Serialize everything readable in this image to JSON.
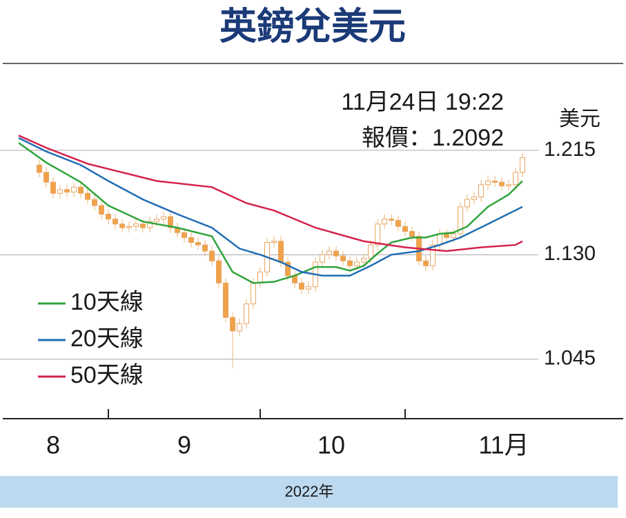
{
  "chart_data": {
    "type": "candlestick",
    "title": "英鎊兌美元",
    "annotations": [
      "11月24日 19:22",
      "報價：1.2092"
    ],
    "y_label": "美元",
    "x_label": "2022年",
    "month_labels": [
      "8",
      "9",
      "10",
      "11月"
    ],
    "open": [
      1.203,
      1.197,
      1.189,
      1.18,
      1.183,
      1.181,
      1.185,
      1.18,
      1.175,
      1.17,
      1.163,
      1.159,
      1.155,
      1.152,
      1.153,
      1.155,
      1.152,
      1.157,
      1.159,
      1.161,
      1.152,
      1.148,
      1.144,
      1.14,
      1.138,
      1.133,
      1.125,
      1.107,
      1.079,
      1.068,
      1.074,
      1.09,
      1.107,
      1.116,
      1.14,
      1.141,
      1.124,
      1.113,
      1.107,
      1.102,
      1.104,
      1.124,
      1.13,
      1.133,
      1.129,
      1.125,
      1.121,
      1.124,
      1.127,
      1.138,
      1.155,
      1.159,
      1.158,
      1.153,
      1.149,
      1.145,
      1.125,
      1.121,
      1.138,
      1.147,
      1.144,
      1.147,
      1.169,
      1.175,
      1.177,
      1.187,
      1.19,
      1.189,
      1.186,
      1.187,
      1.197
    ],
    "high": [
      1.207,
      1.201,
      1.193,
      1.187,
      1.187,
      1.189,
      1.189,
      1.184,
      1.179,
      1.174,
      1.167,
      1.163,
      1.159,
      1.157,
      1.159,
      1.159,
      1.161,
      1.163,
      1.165,
      1.165,
      1.156,
      1.152,
      1.148,
      1.144,
      1.142,
      1.137,
      1.129,
      1.111,
      1.083,
      1.078,
      1.094,
      1.111,
      1.12,
      1.144,
      1.145,
      1.145,
      1.128,
      1.117,
      1.111,
      1.108,
      1.128,
      1.134,
      1.137,
      1.137,
      1.133,
      1.129,
      1.128,
      1.131,
      1.142,
      1.159,
      1.163,
      1.163,
      1.162,
      1.157,
      1.153,
      1.149,
      1.129,
      1.142,
      1.151,
      1.151,
      1.151,
      1.173,
      1.179,
      1.181,
      1.191,
      1.194,
      1.194,
      1.193,
      1.191,
      1.201,
      1.213
    ],
    "low": [
      1.193,
      1.185,
      1.176,
      1.176,
      1.177,
      1.177,
      1.176,
      1.171,
      1.166,
      1.159,
      1.155,
      1.151,
      1.148,
      1.148,
      1.149,
      1.148,
      1.148,
      1.153,
      1.155,
      1.148,
      1.144,
      1.14,
      1.136,
      1.134,
      1.129,
      1.121,
      1.103,
      1.075,
      1.038,
      1.064,
      1.07,
      1.086,
      1.103,
      1.112,
      1.136,
      1.12,
      1.109,
      1.103,
      1.098,
      1.098,
      1.1,
      1.12,
      1.126,
      1.125,
      1.121,
      1.117,
      1.117,
      1.12,
      1.123,
      1.134,
      1.151,
      1.154,
      1.149,
      1.145,
      1.141,
      1.121,
      1.117,
      1.117,
      1.134,
      1.14,
      1.14,
      1.143,
      1.165,
      1.171,
      1.173,
      1.183,
      1.185,
      1.182,
      1.182,
      1.183,
      1.193
    ],
    "close": [
      1.197,
      1.189,
      1.18,
      1.183,
      1.181,
      1.185,
      1.18,
      1.175,
      1.17,
      1.163,
      1.159,
      1.155,
      1.152,
      1.153,
      1.155,
      1.152,
      1.157,
      1.159,
      1.161,
      1.152,
      1.148,
      1.144,
      1.14,
      1.138,
      1.133,
      1.125,
      1.107,
      1.079,
      1.068,
      1.074,
      1.09,
      1.107,
      1.116,
      1.14,
      1.141,
      1.124,
      1.113,
      1.107,
      1.102,
      1.104,
      1.124,
      1.13,
      1.133,
      1.129,
      1.125,
      1.121,
      1.124,
      1.127,
      1.138,
      1.155,
      1.159,
      1.158,
      1.153,
      1.149,
      1.145,
      1.125,
      1.121,
      1.138,
      1.147,
      1.144,
      1.147,
      1.169,
      1.175,
      1.177,
      1.187,
      1.19,
      1.189,
      1.186,
      1.187,
      1.197,
      1.209
    ],
    "up_color": "#ffffff",
    "down_color": "#f0a24a",
    "series": [
      {
        "name": "10天線",
        "color": "#2ea33a",
        "x": [
          -3,
          1,
          6,
          10,
          15,
          20,
          25,
          28,
          31,
          34,
          37,
          40,
          43,
          45,
          47,
          49,
          51,
          54,
          56,
          58,
          60,
          62,
          65,
          68,
          70
        ],
        "values": [
          1.221,
          1.205,
          1.189,
          1.17,
          1.157,
          1.152,
          1.145,
          1.116,
          1.107,
          1.108,
          1.113,
          1.12,
          1.12,
          1.117,
          1.121,
          1.131,
          1.14,
          1.144,
          1.144,
          1.147,
          1.148,
          1.153,
          1.169,
          1.179,
          1.19
        ]
      },
      {
        "name": "20天線",
        "color": "#1f6cb5",
        "x": [
          -3,
          1,
          6,
          10,
          15,
          20,
          25,
          29,
          32,
          35,
          38,
          41,
          45,
          48,
          51,
          55,
          58,
          61,
          65,
          70
        ],
        "values": [
          1.225,
          1.214,
          1.203,
          1.19,
          1.175,
          1.163,
          1.152,
          1.135,
          1.13,
          1.124,
          1.116,
          1.113,
          1.113,
          1.121,
          1.13,
          1.133,
          1.138,
          1.144,
          1.155,
          1.169
        ]
      },
      {
        "name": "50天線",
        "color": "#d4214a",
        "x": [
          -3,
          1,
          7,
          17,
          25,
          30,
          34,
          40,
          47,
          53,
          59,
          64,
          69,
          70
        ],
        "values": [
          1.227,
          1.217,
          1.204,
          1.19,
          1.185,
          1.172,
          1.166,
          1.152,
          1.141,
          1.136,
          1.133,
          1.136,
          1.138,
          1.141
        ]
      }
    ],
    "ylim": [
      1.0,
      1.28
    ],
    "yticks": [
      1.045,
      {
        "value": 1.13,
        "label": "1.130"
      },
      1.215
    ],
    "grid": true
  }
}
